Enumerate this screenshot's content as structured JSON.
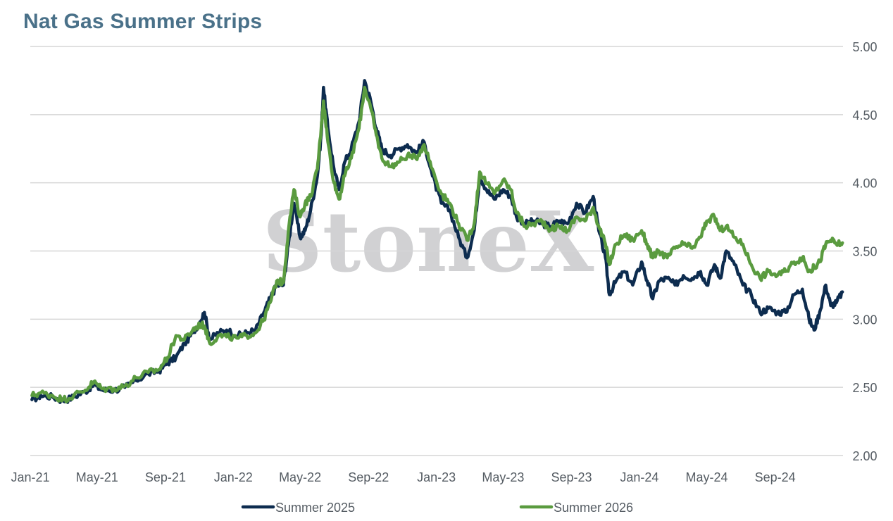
{
  "watermark": "StoneX",
  "colors": {
    "summer_2025": "#0d2c4f",
    "summer_2026": "#5a9b3f",
    "grid": "#d6d6d6",
    "title": "#4a7189"
  },
  "chart_data": {
    "type": "line",
    "title": "Nat Gas Summer Strips",
    "xlabel": "",
    "ylabel": "",
    "ylim": [
      2.0,
      5.0
    ],
    "y_ticks": [
      "5.00",
      "4.50",
      "4.00",
      "3.50",
      "3.00",
      "2.50",
      "2.00"
    ],
    "y_tick_values": [
      5.0,
      4.5,
      4.0,
      3.5,
      3.0,
      2.5,
      2.0
    ],
    "x_tick_labels": [
      "Jan-21",
      "May-21",
      "Sep-21",
      "Jan-22",
      "May-22",
      "Sep-22",
      "Jan-23",
      "May-23",
      "Sep-23",
      "Jan-24",
      "May-24",
      "Sep-24"
    ],
    "x_tick_dates": [
      "2021-01",
      "2021-05",
      "2021-09",
      "2022-01",
      "2022-05",
      "2022-09",
      "2023-01",
      "2023-05",
      "2023-09",
      "2024-01",
      "2024-05",
      "2024-09"
    ],
    "x_range": [
      "2021-01",
      "2025-01"
    ],
    "grid": true,
    "legend_position": "bottom",
    "series": [
      {
        "name": "Summer 2025",
        "color": "#0d2c4f",
        "points": [
          [
            "2021-01-04",
            2.41
          ],
          [
            "2021-01-20",
            2.44
          ],
          [
            "2021-02-10",
            2.43
          ],
          [
            "2021-03-01",
            2.4
          ],
          [
            "2021-03-20",
            2.43
          ],
          [
            "2021-04-10",
            2.47
          ],
          [
            "2021-04-25",
            2.52
          ],
          [
            "2021-05-10",
            2.48
          ],
          [
            "2021-06-01",
            2.48
          ],
          [
            "2021-06-20",
            2.5
          ],
          [
            "2021-07-10",
            2.55
          ],
          [
            "2021-08-01",
            2.6
          ],
          [
            "2021-08-20",
            2.62
          ],
          [
            "2021-09-05",
            2.68
          ],
          [
            "2021-09-20",
            2.72
          ],
          [
            "2021-10-05",
            2.82
          ],
          [
            "2021-10-20",
            2.9
          ],
          [
            "2021-11-02",
            2.98
          ],
          [
            "2021-11-10",
            3.05
          ],
          [
            "2021-11-20",
            2.85
          ],
          [
            "2021-12-05",
            2.9
          ],
          [
            "2021-12-20",
            2.92
          ],
          [
            "2022-01-10",
            2.88
          ],
          [
            "2022-01-25",
            2.9
          ],
          [
            "2022-02-10",
            2.92
          ],
          [
            "2022-02-25",
            3.05
          ],
          [
            "2022-03-08",
            3.15
          ],
          [
            "2022-03-20",
            3.25
          ],
          [
            "2022-04-01",
            3.25
          ],
          [
            "2022-04-10",
            3.55
          ],
          [
            "2022-04-20",
            3.85
          ],
          [
            "2022-05-01",
            3.6
          ],
          [
            "2022-05-10",
            3.65
          ],
          [
            "2022-05-20",
            3.8
          ],
          [
            "2022-06-01",
            4.05
          ],
          [
            "2022-06-08",
            4.35
          ],
          [
            "2022-06-12",
            4.7
          ],
          [
            "2022-06-20",
            4.4
          ],
          [
            "2022-07-01",
            4.1
          ],
          [
            "2022-07-10",
            3.95
          ],
          [
            "2022-07-20",
            4.15
          ],
          [
            "2022-08-01",
            4.25
          ],
          [
            "2022-08-15",
            4.45
          ],
          [
            "2022-08-25",
            4.75
          ],
          [
            "2022-09-05",
            4.6
          ],
          [
            "2022-09-15",
            4.4
          ],
          [
            "2022-09-25",
            4.25
          ],
          [
            "2022-10-10",
            4.2
          ],
          [
            "2022-10-25",
            4.25
          ],
          [
            "2022-11-10",
            4.28
          ],
          [
            "2022-11-25",
            4.22
          ],
          [
            "2022-12-10",
            4.3
          ],
          [
            "2022-12-25",
            4.05
          ],
          [
            "2023-01-10",
            3.85
          ],
          [
            "2023-01-25",
            3.8
          ],
          [
            "2023-02-10",
            3.6
          ],
          [
            "2023-02-25",
            3.45
          ],
          [
            "2023-03-10",
            3.65
          ],
          [
            "2023-03-20",
            4.05
          ],
          [
            "2023-04-01",
            3.95
          ],
          [
            "2023-04-15",
            3.88
          ],
          [
            "2023-05-01",
            3.95
          ],
          [
            "2023-05-15",
            3.9
          ],
          [
            "2023-05-25",
            3.75
          ],
          [
            "2023-06-10",
            3.7
          ],
          [
            "2023-06-25",
            3.72
          ],
          [
            "2023-07-10",
            3.7
          ],
          [
            "2023-07-25",
            3.68
          ],
          [
            "2023-08-10",
            3.72
          ],
          [
            "2023-08-25",
            3.7
          ],
          [
            "2023-09-10",
            3.85
          ],
          [
            "2023-09-25",
            3.78
          ],
          [
            "2023-10-10",
            3.9
          ],
          [
            "2023-10-20",
            3.65
          ],
          [
            "2023-11-01",
            3.45
          ],
          [
            "2023-11-08",
            3.18
          ],
          [
            "2023-11-20",
            3.28
          ],
          [
            "2023-12-05",
            3.35
          ],
          [
            "2023-12-20",
            3.25
          ],
          [
            "2024-01-05",
            3.42
          ],
          [
            "2024-01-15",
            3.28
          ],
          [
            "2024-01-25",
            3.15
          ],
          [
            "2024-02-05",
            3.28
          ],
          [
            "2024-02-20",
            3.3
          ],
          [
            "2024-03-05",
            3.25
          ],
          [
            "2024-03-20",
            3.32
          ],
          [
            "2024-04-05",
            3.3
          ],
          [
            "2024-04-20",
            3.35
          ],
          [
            "2024-05-01",
            3.25
          ],
          [
            "2024-05-15",
            3.4
          ],
          [
            "2024-05-25",
            3.3
          ],
          [
            "2024-06-05",
            3.5
          ],
          [
            "2024-06-20",
            3.4
          ],
          [
            "2024-07-05",
            3.25
          ],
          [
            "2024-07-20",
            3.18
          ],
          [
            "2024-08-05",
            3.05
          ],
          [
            "2024-08-20",
            3.08
          ],
          [
            "2024-09-05",
            3.05
          ],
          [
            "2024-09-20",
            3.05
          ],
          [
            "2024-10-05",
            3.18
          ],
          [
            "2024-10-20",
            3.22
          ],
          [
            "2024-11-01",
            3.0
          ],
          [
            "2024-11-10",
            2.92
          ],
          [
            "2024-11-20",
            3.05
          ],
          [
            "2024-12-01",
            3.25
          ],
          [
            "2024-12-10",
            3.1
          ],
          [
            "2024-12-20",
            3.12
          ],
          [
            "2024-12-31",
            3.2
          ]
        ]
      },
      {
        "name": "Summer 2026",
        "color": "#5a9b3f",
        "points": [
          [
            "2021-01-04",
            2.44
          ],
          [
            "2021-01-20",
            2.46
          ],
          [
            "2021-02-10",
            2.44
          ],
          [
            "2021-03-01",
            2.41
          ],
          [
            "2021-03-20",
            2.44
          ],
          [
            "2021-04-10",
            2.48
          ],
          [
            "2021-04-25",
            2.54
          ],
          [
            "2021-05-10",
            2.49
          ],
          [
            "2021-06-01",
            2.49
          ],
          [
            "2021-06-20",
            2.51
          ],
          [
            "2021-07-10",
            2.57
          ],
          [
            "2021-08-01",
            2.61
          ],
          [
            "2021-08-20",
            2.63
          ],
          [
            "2021-09-05",
            2.72
          ],
          [
            "2021-09-20",
            2.88
          ],
          [
            "2021-10-05",
            2.85
          ],
          [
            "2021-10-20",
            2.92
          ],
          [
            "2021-11-02",
            2.96
          ],
          [
            "2021-11-10",
            2.95
          ],
          [
            "2021-11-20",
            2.82
          ],
          [
            "2021-12-05",
            2.88
          ],
          [
            "2021-12-20",
            2.87
          ],
          [
            "2022-01-10",
            2.86
          ],
          [
            "2022-01-25",
            2.88
          ],
          [
            "2022-02-10",
            2.9
          ],
          [
            "2022-02-25",
            3.0
          ],
          [
            "2022-03-08",
            3.12
          ],
          [
            "2022-03-20",
            3.28
          ],
          [
            "2022-04-01",
            3.27
          ],
          [
            "2022-04-10",
            3.65
          ],
          [
            "2022-04-20",
            3.95
          ],
          [
            "2022-05-01",
            3.75
          ],
          [
            "2022-05-10",
            3.85
          ],
          [
            "2022-05-20",
            3.9
          ],
          [
            "2022-06-01",
            4.1
          ],
          [
            "2022-06-08",
            4.4
          ],
          [
            "2022-06-12",
            4.6
          ],
          [
            "2022-06-20",
            4.3
          ],
          [
            "2022-07-01",
            4.0
          ],
          [
            "2022-07-10",
            3.88
          ],
          [
            "2022-07-20",
            4.05
          ],
          [
            "2022-08-01",
            4.18
          ],
          [
            "2022-08-15",
            4.4
          ],
          [
            "2022-08-25",
            4.7
          ],
          [
            "2022-09-05",
            4.55
          ],
          [
            "2022-09-15",
            4.35
          ],
          [
            "2022-09-25",
            4.18
          ],
          [
            "2022-10-10",
            4.12
          ],
          [
            "2022-10-25",
            4.15
          ],
          [
            "2022-11-10",
            4.2
          ],
          [
            "2022-11-25",
            4.18
          ],
          [
            "2022-12-10",
            4.28
          ],
          [
            "2022-12-25",
            4.1
          ],
          [
            "2023-01-10",
            3.92
          ],
          [
            "2023-01-25",
            3.85
          ],
          [
            "2023-02-10",
            3.7
          ],
          [
            "2023-02-25",
            3.58
          ],
          [
            "2023-03-10",
            3.7
          ],
          [
            "2023-03-20",
            4.08
          ],
          [
            "2023-04-01",
            4.0
          ],
          [
            "2023-04-15",
            3.92
          ],
          [
            "2023-05-01",
            4.02
          ],
          [
            "2023-05-15",
            3.95
          ],
          [
            "2023-05-25",
            3.78
          ],
          [
            "2023-06-10",
            3.68
          ],
          [
            "2023-06-25",
            3.7
          ],
          [
            "2023-07-10",
            3.72
          ],
          [
            "2023-07-25",
            3.66
          ],
          [
            "2023-08-10",
            3.68
          ],
          [
            "2023-08-25",
            3.65
          ],
          [
            "2023-09-10",
            3.75
          ],
          [
            "2023-09-25",
            3.72
          ],
          [
            "2023-10-10",
            3.82
          ],
          [
            "2023-10-20",
            3.68
          ],
          [
            "2023-11-01",
            3.55
          ],
          [
            "2023-11-08",
            3.4
          ],
          [
            "2023-11-20",
            3.55
          ],
          [
            "2023-12-05",
            3.62
          ],
          [
            "2023-12-20",
            3.58
          ],
          [
            "2024-01-05",
            3.65
          ],
          [
            "2024-01-15",
            3.55
          ],
          [
            "2024-01-25",
            3.45
          ],
          [
            "2024-02-05",
            3.5
          ],
          [
            "2024-02-20",
            3.45
          ],
          [
            "2024-03-05",
            3.52
          ],
          [
            "2024-03-20",
            3.55
          ],
          [
            "2024-04-05",
            3.52
          ],
          [
            "2024-04-20",
            3.6
          ],
          [
            "2024-05-01",
            3.72
          ],
          [
            "2024-05-15",
            3.75
          ],
          [
            "2024-05-25",
            3.65
          ],
          [
            "2024-06-05",
            3.68
          ],
          [
            "2024-06-20",
            3.6
          ],
          [
            "2024-07-05",
            3.55
          ],
          [
            "2024-07-20",
            3.4
          ],
          [
            "2024-08-05",
            3.3
          ],
          [
            "2024-08-20",
            3.35
          ],
          [
            "2024-09-05",
            3.32
          ],
          [
            "2024-09-20",
            3.35
          ],
          [
            "2024-10-05",
            3.42
          ],
          [
            "2024-10-20",
            3.45
          ],
          [
            "2024-11-01",
            3.35
          ],
          [
            "2024-11-10",
            3.38
          ],
          [
            "2024-11-20",
            3.42
          ],
          [
            "2024-12-01",
            3.55
          ],
          [
            "2024-12-10",
            3.58
          ],
          [
            "2024-12-20",
            3.55
          ],
          [
            "2024-12-31",
            3.56
          ]
        ]
      }
    ]
  }
}
